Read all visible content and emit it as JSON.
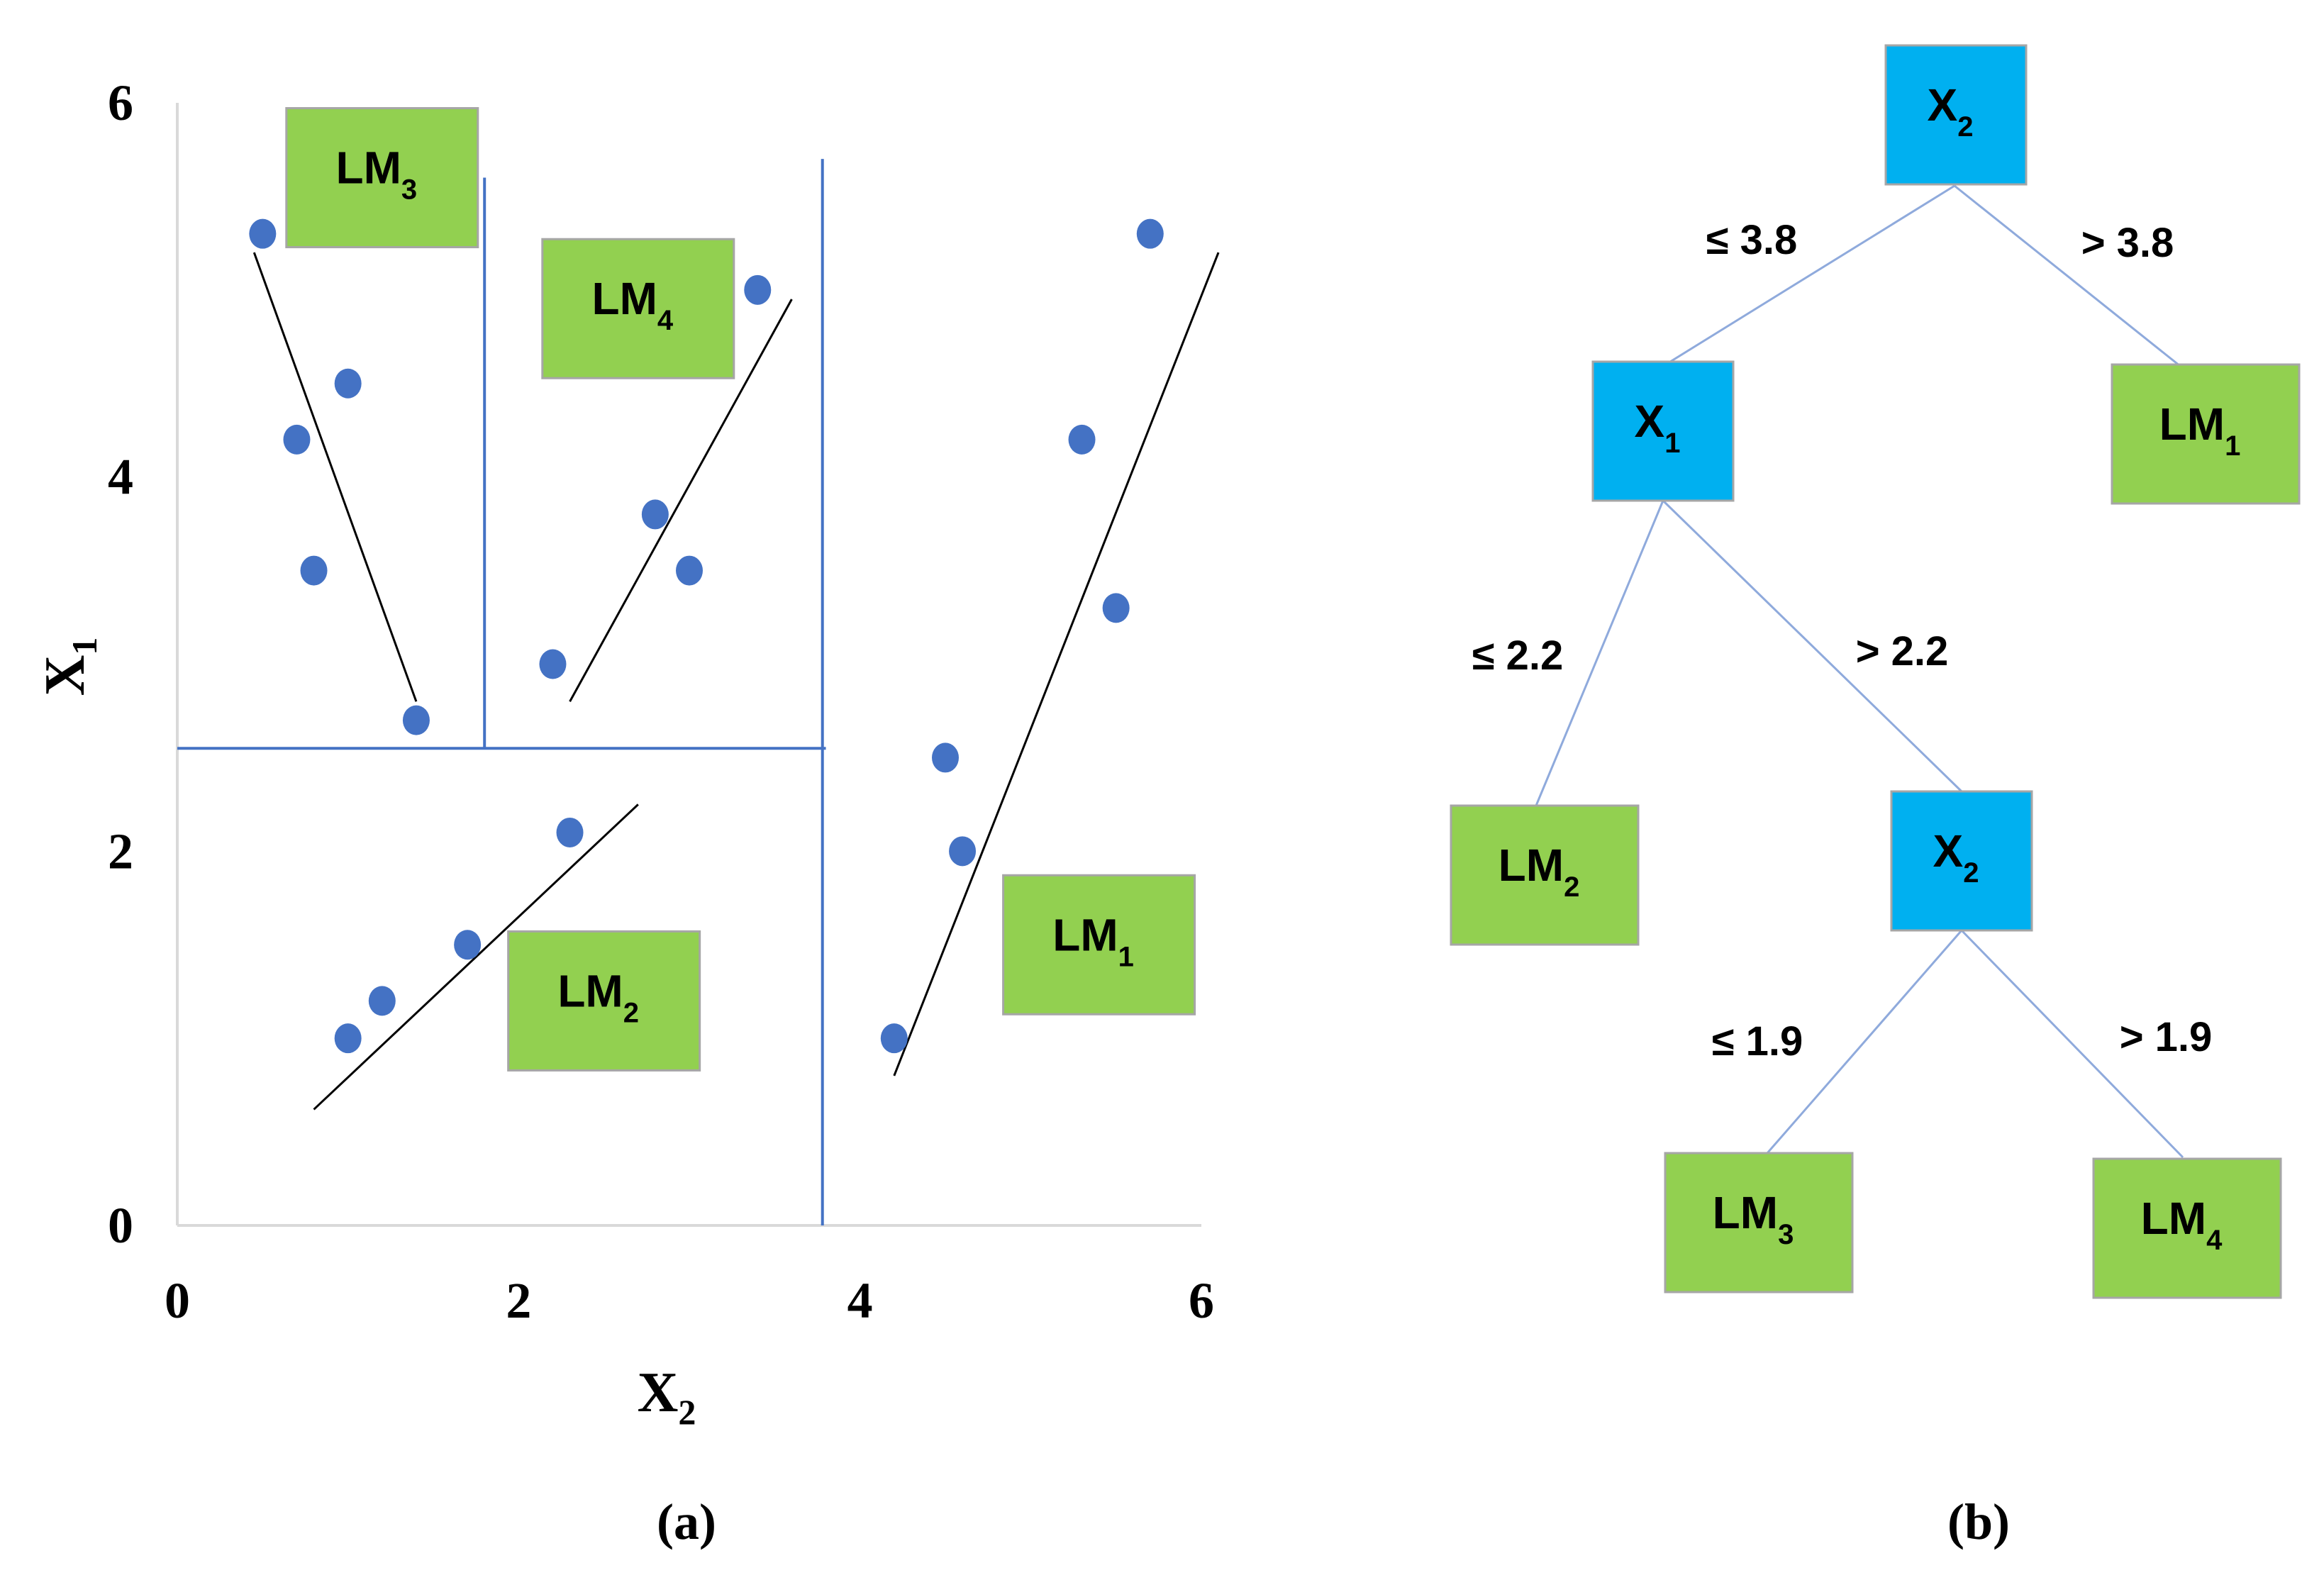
{
  "panel_a": {
    "label": "(a)",
    "xlabel": {
      "main": "X",
      "sub": "2"
    },
    "ylabel": {
      "main": "X",
      "sub": "1"
    },
    "chart_data": {
      "type": "scatter",
      "xlim": [
        0,
        6
      ],
      "ylim": [
        0,
        6
      ],
      "x_ticks": [
        "0",
        "2",
        "4",
        "6"
      ],
      "y_ticks": [
        "0",
        "2",
        "4",
        "6"
      ],
      "points": [
        {
          "x": 0.5,
          "y": 5.3
        },
        {
          "x": 1.0,
          "y": 4.5
        },
        {
          "x": 0.7,
          "y": 4.2
        },
        {
          "x": 0.8,
          "y": 3.5
        },
        {
          "x": 1.4,
          "y": 2.7
        },
        {
          "x": 3.4,
          "y": 5.0
        },
        {
          "x": 2.8,
          "y": 3.8
        },
        {
          "x": 3.0,
          "y": 3.5
        },
        {
          "x": 2.2,
          "y": 3.0
        },
        {
          "x": 2.3,
          "y": 2.1
        },
        {
          "x": 1.7,
          "y": 1.5
        },
        {
          "x": 1.2,
          "y": 1.2
        },
        {
          "x": 1.0,
          "y": 1.0
        },
        {
          "x": 5.7,
          "y": 5.3
        },
        {
          "x": 5.3,
          "y": 4.2
        },
        {
          "x": 5.5,
          "y": 3.3
        },
        {
          "x": 4.5,
          "y": 2.5
        },
        {
          "x": 4.6,
          "y": 2.0
        },
        {
          "x": 4.2,
          "y": 1.0
        }
      ],
      "fit_lines": [
        {
          "x1": 0.45,
          "y1": 5.2,
          "x2": 1.4,
          "y2": 2.8
        },
        {
          "x1": 2.3,
          "y1": 2.8,
          "x2": 3.6,
          "y2": 4.95
        },
        {
          "x1": 0.8,
          "y1": 0.62,
          "x2": 2.7,
          "y2": 2.25
        },
        {
          "x1": 4.2,
          "y1": 0.8,
          "x2": 6.1,
          "y2": 5.2
        }
      ],
      "split_lines": [
        {
          "x1": 0,
          "y1": 2.55,
          "x2": 3.8,
          "y2": 2.55
        },
        {
          "x1": 1.8,
          "y1": 2.55,
          "x2": 1.8,
          "y2": 5.6
        },
        {
          "x1": 3.78,
          "y1": 0,
          "x2": 3.78,
          "y2": 5.7
        }
      ],
      "region_labels": [
        {
          "main": "LM",
          "sub": "3",
          "x": 1.2,
          "y": 5.6
        },
        {
          "main": "LM",
          "sub": "4",
          "x": 2.7,
          "y": 4.9
        },
        {
          "main": "LM",
          "sub": "2",
          "x": 2.5,
          "y": 1.2
        },
        {
          "main": "LM",
          "sub": "1",
          "x": 5.4,
          "y": 1.5
        }
      ]
    }
  },
  "panel_b": {
    "label": "(b)",
    "nodes": [
      {
        "id": "root",
        "type": "split",
        "main": "X",
        "sub": "2"
      },
      {
        "id": "n1",
        "type": "split",
        "main": "X",
        "sub": "1"
      },
      {
        "id": "lm1",
        "type": "leaf",
        "main": "LM",
        "sub": "1"
      },
      {
        "id": "lm2",
        "type": "leaf",
        "main": "LM",
        "sub": "2"
      },
      {
        "id": "n2",
        "type": "split",
        "main": "X",
        "sub": "2"
      },
      {
        "id": "lm3",
        "type": "leaf",
        "main": "LM",
        "sub": "3"
      },
      {
        "id": "lm4",
        "type": "leaf",
        "main": "LM",
        "sub": "4"
      }
    ],
    "edges": [
      {
        "from": "root",
        "to": "n1",
        "label": "≤ 3.8"
      },
      {
        "from": "root",
        "to": "lm1",
        "label": "> 3.8"
      },
      {
        "from": "n1",
        "to": "lm2",
        "label": "≤ 2.2"
      },
      {
        "from": "n1",
        "to": "n2",
        "label": "> 2.2"
      },
      {
        "from": "n2",
        "to": "lm3",
        "label": "≤ 1.9"
      },
      {
        "from": "n2",
        "to": "lm4",
        "label": "> 1.9"
      }
    ]
  },
  "colors": {
    "split_node": "#00b0f0",
    "leaf_node": "#92d050",
    "node_border": "#a6a6a6",
    "point": "#4472c4",
    "split_line": "#4472c4",
    "tree_edge": "#8faadc",
    "fit_line": "#000000",
    "axis": "#d9d9d9"
  }
}
